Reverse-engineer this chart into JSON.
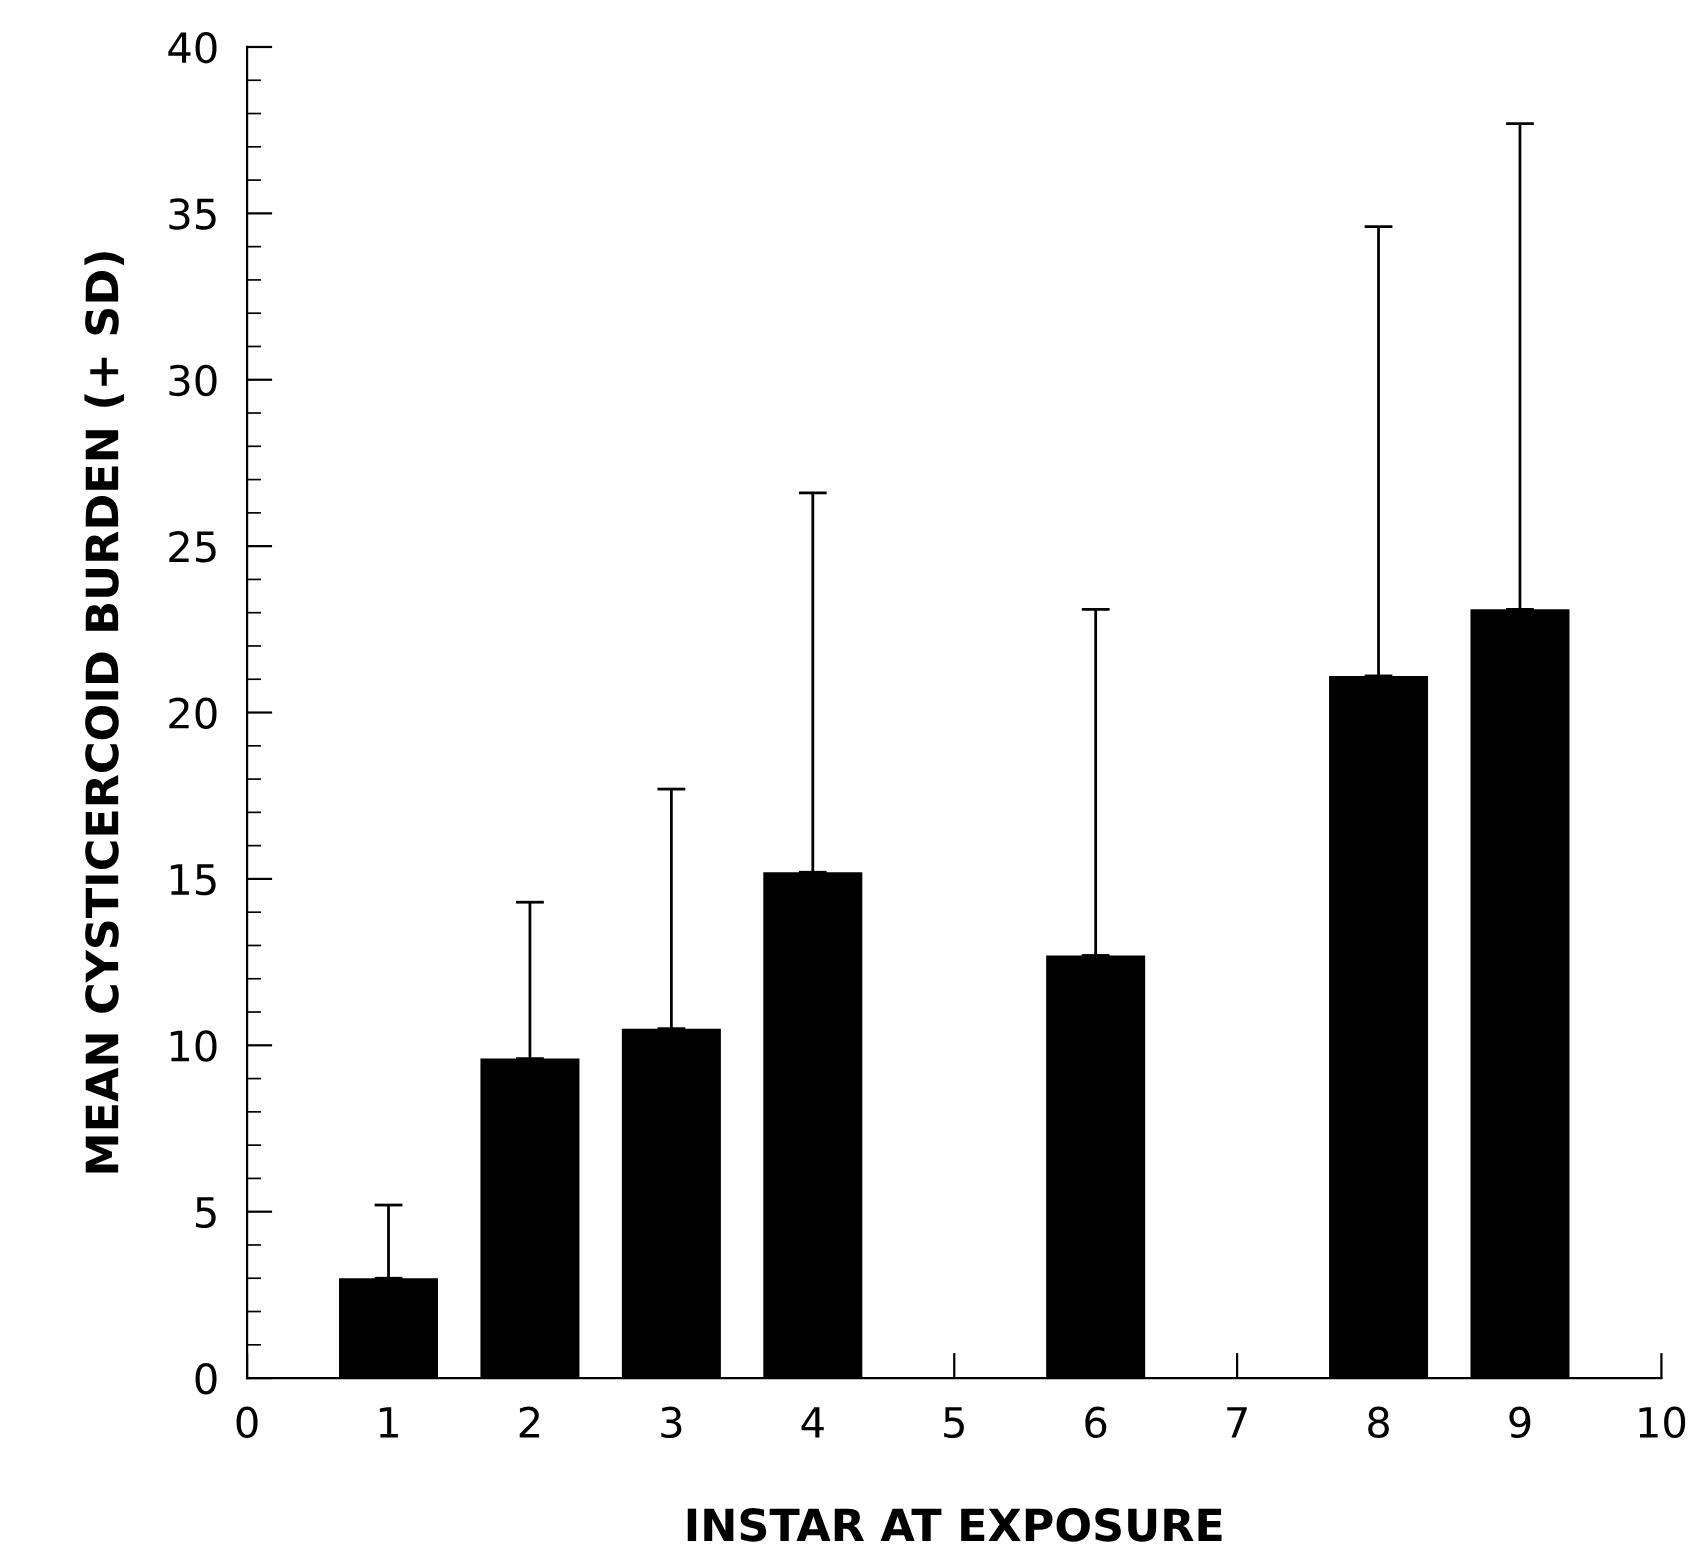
{
  "chart_data": {
    "type": "bar",
    "xlabel": "INSTAR AT EXPOSURE",
    "ylabel": "MEAN CYSTICERCOID BURDEN (+ SD)",
    "x": [
      1,
      2,
      3,
      4,
      6,
      8,
      9
    ],
    "values": [
      3.0,
      9.6,
      10.5,
      15.2,
      12.7,
      21.1,
      23.1
    ],
    "errors": [
      [
        3.0,
        5.2
      ],
      [
        9.6,
        14.3
      ],
      [
        10.5,
        17.7
      ],
      [
        15.2,
        26.6
      ],
      [
        12.7,
        23.1
      ],
      [
        21.1,
        34.6
      ],
      [
        23.1,
        37.7
      ]
    ],
    "color": "#000000",
    "xlim": [
      0,
      10
    ],
    "xticks": [
      0,
      1,
      2,
      3,
      4,
      5,
      6,
      7,
      8,
      9,
      10
    ],
    "ylim": [
      0,
      40
    ],
    "yticks": [
      0,
      5,
      10,
      15,
      20,
      25,
      30,
      35,
      40
    ],
    "grid": false,
    "legend": false
  }
}
